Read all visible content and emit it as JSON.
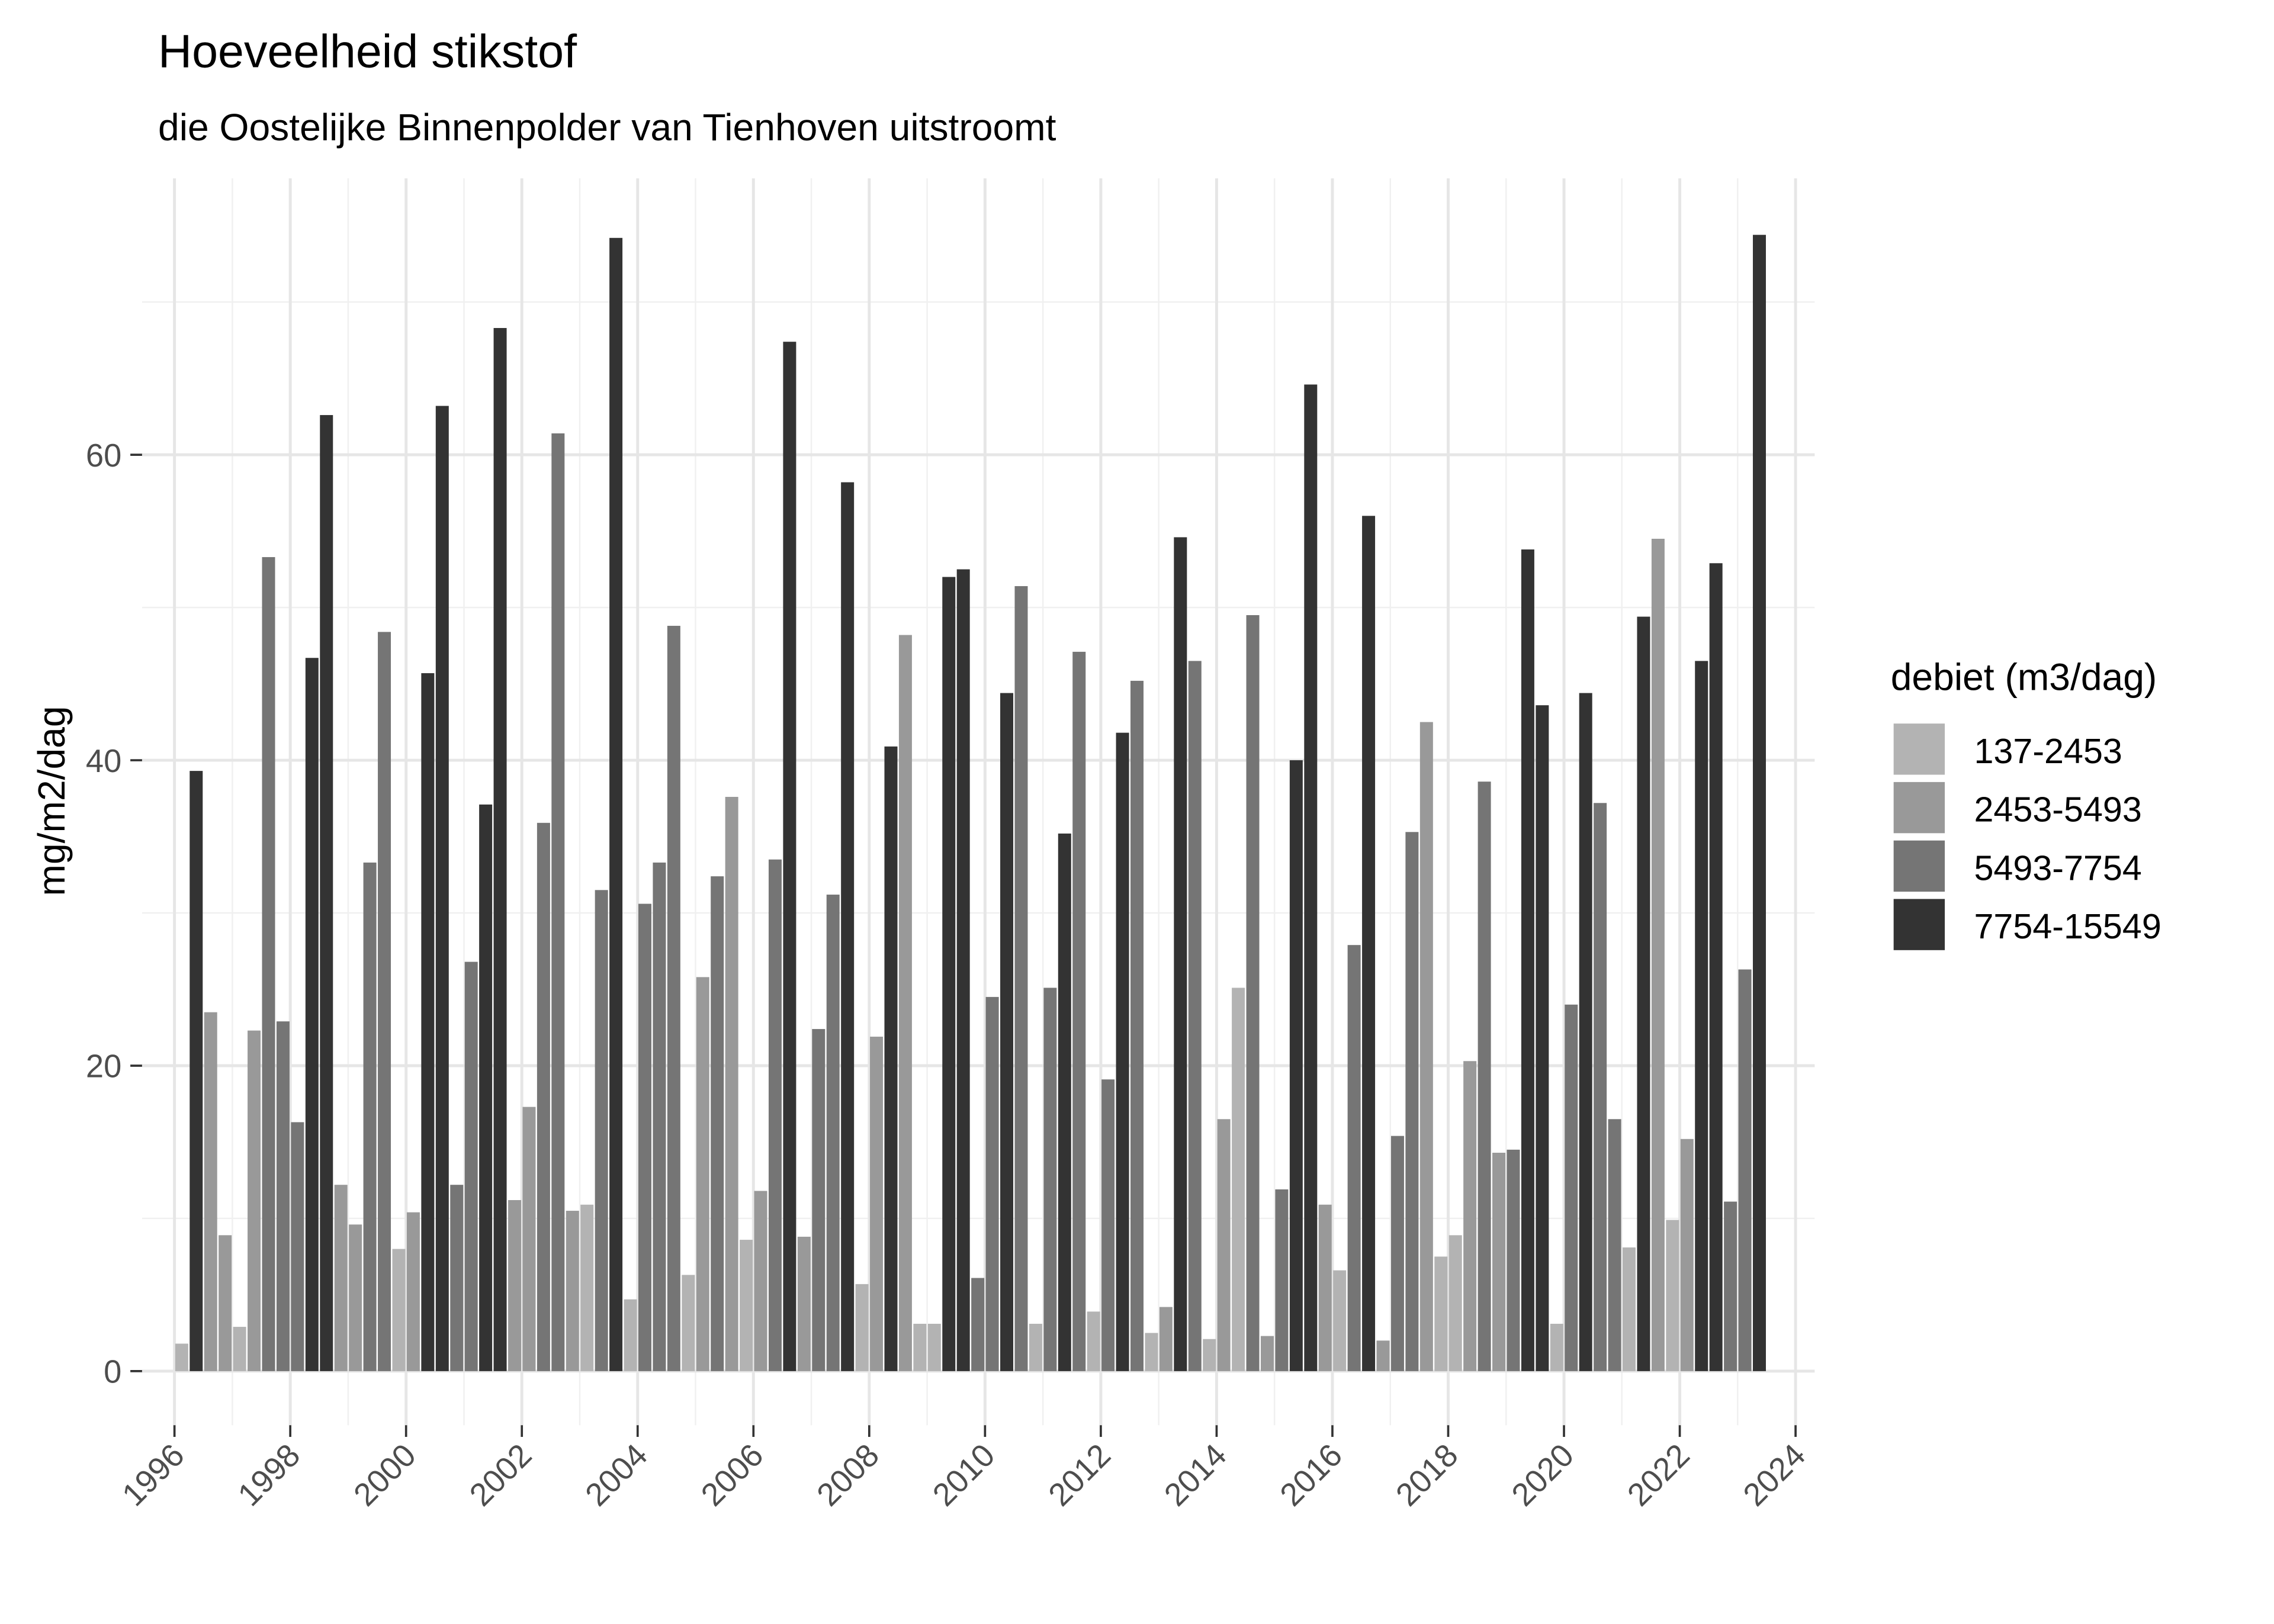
{
  "chart_data": {
    "type": "bar",
    "title": "Hoeveelheid stikstof",
    "subtitle": "die Oostelijke Binnenpolder van Tienhoven uitstroomt",
    "y_label": "mg/m2/dag",
    "legend_title": "debiet (m3/dag)",
    "legend_position": "right",
    "grid": true,
    "xlim": [
      1995.44,
      2024.33
    ],
    "xticks": [
      1996,
      1998,
      2000,
      2002,
      2004,
      2006,
      2008,
      2010,
      2012,
      2014,
      2016,
      2018,
      2020,
      2022,
      2024
    ],
    "xminor_ticks": [
      1997,
      1999,
      2001,
      2003,
      2005,
      2007,
      2009,
      2011,
      2013,
      2015,
      2017,
      2019,
      2021,
      2023
    ],
    "ylim": [
      -3.54,
      78.1
    ],
    "yticks": [
      0,
      20,
      40,
      60
    ],
    "yminor_ticks": [
      10,
      30,
      50,
      70
    ],
    "series": [
      {
        "name": "137-2453",
        "color": "#b3b3b3",
        "x": [
          1996.125,
          1997.125,
          1999.875,
          2003.125,
          2003.875,
          2004.875,
          2005.875,
          2007.875,
          2008.875,
          2009.125,
          2010.875,
          2011.875,
          2012.875,
          2013.875,
          2014.375,
          2016.125,
          2017.875,
          2018.125,
          2019.875,
          2021.125,
          2021.875
        ],
        "values": [
          1.8,
          2.9,
          8.0,
          10.9,
          4.7,
          6.3,
          8.6,
          5.7,
          3.1,
          3.1,
          3.1,
          3.9,
          2.5,
          2.1,
          25.1,
          6.6,
          7.5,
          8.9,
          3.1,
          8.1,
          9.9
        ]
      },
      {
        "name": "2453-5493",
        "color": "#999999",
        "x": [
          1996.625,
          1996.875,
          1997.375,
          1998.875,
          1999.125,
          2000.125,
          2001.875,
          2002.125,
          2002.875,
          2005.125,
          2005.625,
          2006.125,
          2006.875,
          2008.125,
          2008.625,
          2013.125,
          2014.125,
          2014.875,
          2015.875,
          2016.875,
          2017.625,
          2018.375,
          2018.875,
          2021.625,
          2022.125
        ],
        "values": [
          23.5,
          8.9,
          22.3,
          12.2,
          9.6,
          10.4,
          11.2,
          17.3,
          10.5,
          25.8,
          37.6,
          11.8,
          8.8,
          21.9,
          48.2,
          4.2,
          16.5,
          2.3,
          10.9,
          2.0,
          42.5,
          20.3,
          14.3,
          54.5,
          15.2
        ]
      },
      {
        "name": "5493-7754",
        "color": "#757575",
        "x": [
          1997.625,
          1997.875,
          1998.125,
          1999.375,
          1999.625,
          2000.875,
          2001.125,
          2002.375,
          2002.625,
          2003.375,
          2004.125,
          2004.375,
          2004.625,
          2005.375,
          2006.375,
          2007.125,
          2007.375,
          2009.875,
          2010.125,
          2010.625,
          2011.125,
          2011.625,
          2012.125,
          2012.625,
          2013.625,
          2014.625,
          2015.125,
          2016.375,
          2017.125,
          2017.375,
          2018.625,
          2019.125,
          2020.125,
          2020.625,
          2020.875,
          2022.875,
          2023.125
        ],
        "values": [
          53.3,
          22.9,
          16.3,
          33.3,
          48.4,
          12.2,
          26.8,
          35.9,
          61.4,
          31.5,
          30.6,
          33.3,
          48.8,
          32.4,
          33.5,
          22.4,
          31.2,
          6.1,
          24.5,
          51.4,
          25.1,
          47.1,
          19.1,
          45.2,
          46.5,
          49.5,
          11.9,
          27.9,
          15.4,
          35.3,
          38.6,
          14.5,
          24.0,
          37.2,
          16.5,
          11.1,
          26.3
        ]
      },
      {
        "name": "7754-15549",
        "color": "#333333",
        "x": [
          1996.375,
          1998.375,
          1998.625,
          2000.375,
          2000.625,
          2001.375,
          2001.625,
          2003.625,
          2006.625,
          2007.625,
          2008.375,
          2009.375,
          2009.625,
          2010.375,
          2011.375,
          2012.375,
          2013.375,
          2015.375,
          2015.625,
          2016.625,
          2019.375,
          2019.625,
          2020.375,
          2021.375,
          2022.375,
          2022.625,
          2023.375
        ],
        "values": [
          39.3,
          46.7,
          62.6,
          45.7,
          63.2,
          37.1,
          68.3,
          74.2,
          67.4,
          58.2,
          40.9,
          52.0,
          52.5,
          44.4,
          35.2,
          41.8,
          54.6,
          40.0,
          64.6,
          56.0,
          53.8,
          43.6,
          44.4,
          49.4,
          46.5,
          52.9,
          74.4
        ]
      }
    ]
  }
}
